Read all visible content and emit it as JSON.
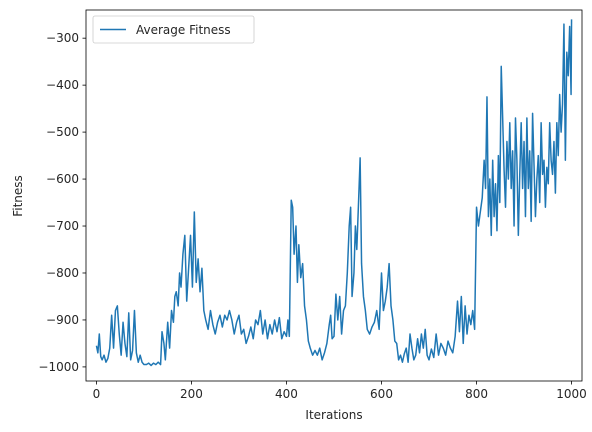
{
  "chart_data": {
    "type": "line",
    "title": "",
    "xlabel": "Iterations",
    "ylabel": "Fitness",
    "xlim": [
      -22,
      1022
    ],
    "ylim": [
      -1030,
      -240
    ],
    "xticks": [
      0,
      200,
      400,
      600,
      800,
      1000
    ],
    "yticks": [
      -1000,
      -900,
      -800,
      -700,
      -600,
      -500,
      -400,
      -300
    ],
    "xtick_labels": [
      "0",
      "200",
      "400",
      "600",
      "800",
      "1000"
    ],
    "ytick_labels": [
      "−1000",
      "−900",
      "−800",
      "−700",
      "−600",
      "−500",
      "−400",
      "−300"
    ],
    "grid": false,
    "legend_position": "top-left",
    "series": [
      {
        "name": "Average Fitness",
        "color": "#1f77b4",
        "keypoints": [
          [
            0,
            -955
          ],
          [
            3,
            -970
          ],
          [
            6,
            -930
          ],
          [
            9,
            -978
          ],
          [
            12,
            -985
          ],
          [
            16,
            -975
          ],
          [
            20,
            -990
          ],
          [
            24,
            -982
          ],
          [
            28,
            -960
          ],
          [
            32,
            -890
          ],
          [
            36,
            -960
          ],
          [
            40,
            -880
          ],
          [
            44,
            -870
          ],
          [
            48,
            -930
          ],
          [
            52,
            -975
          ],
          [
            56,
            -905
          ],
          [
            60,
            -950
          ],
          [
            64,
            -978
          ],
          [
            68,
            -885
          ],
          [
            72,
            -985
          ],
          [
            76,
            -965
          ],
          [
            80,
            -880
          ],
          [
            84,
            -970
          ],
          [
            88,
            -990
          ],
          [
            92,
            -975
          ],
          [
            96,
            -990
          ],
          [
            100,
            -995
          ],
          [
            105,
            -995
          ],
          [
            110,
            -992
          ],
          [
            115,
            -997
          ],
          [
            120,
            -992
          ],
          [
            125,
            -995
          ],
          [
            130,
            -990
          ],
          [
            135,
            -995
          ],
          [
            138,
            -925
          ],
          [
            142,
            -950
          ],
          [
            145,
            -985
          ],
          [
            150,
            -905
          ],
          [
            154,
            -960
          ],
          [
            158,
            -880
          ],
          [
            162,
            -905
          ],
          [
            165,
            -850
          ],
          [
            168,
            -840
          ],
          [
            172,
            -870
          ],
          [
            175,
            -800
          ],
          [
            178,
            -830
          ],
          [
            182,
            -760
          ],
          [
            186,
            -720
          ],
          [
            190,
            -860
          ],
          [
            194,
            -790
          ],
          [
            198,
            -720
          ],
          [
            202,
            -830
          ],
          [
            206,
            -670
          ],
          [
            210,
            -820
          ],
          [
            214,
            -770
          ],
          [
            218,
            -840
          ],
          [
            222,
            -790
          ],
          [
            226,
            -880
          ],
          [
            230,
            -900
          ],
          [
            235,
            -920
          ],
          [
            240,
            -880
          ],
          [
            245,
            -910
          ],
          [
            250,
            -930
          ],
          [
            255,
            -905
          ],
          [
            260,
            -890
          ],
          [
            265,
            -915
          ],
          [
            270,
            -890
          ],
          [
            275,
            -900
          ],
          [
            280,
            -880
          ],
          [
            285,
            -900
          ],
          [
            290,
            -930
          ],
          [
            295,
            -905
          ],
          [
            300,
            -890
          ],
          [
            305,
            -930
          ],
          [
            310,
            -920
          ],
          [
            315,
            -950
          ],
          [
            320,
            -935
          ],
          [
            325,
            -915
          ],
          [
            330,
            -940
          ],
          [
            335,
            -900
          ],
          [
            340,
            -910
          ],
          [
            345,
            -880
          ],
          [
            350,
            -930
          ],
          [
            355,
            -900
          ],
          [
            360,
            -940
          ],
          [
            365,
            -910
          ],
          [
            370,
            -930
          ],
          [
            375,
            -900
          ],
          [
            380,
            -925
          ],
          [
            385,
            -895
          ],
          [
            390,
            -940
          ],
          [
            395,
            -925
          ],
          [
            400,
            -935
          ],
          [
            403,
            -900
          ],
          [
            406,
            -935
          ],
          [
            410,
            -645
          ],
          [
            413,
            -660
          ],
          [
            416,
            -760
          ],
          [
            420,
            -700
          ],
          [
            423,
            -820
          ],
          [
            426,
            -740
          ],
          [
            430,
            -810
          ],
          [
            434,
            -780
          ],
          [
            438,
            -870
          ],
          [
            442,
            -900
          ],
          [
            446,
            -945
          ],
          [
            450,
            -960
          ],
          [
            455,
            -975
          ],
          [
            460,
            -965
          ],
          [
            465,
            -975
          ],
          [
            470,
            -960
          ],
          [
            475,
            -985
          ],
          [
            480,
            -970
          ],
          [
            485,
            -950
          ],
          [
            490,
            -910
          ],
          [
            493,
            -890
          ],
          [
            496,
            -940
          ],
          [
            500,
            -935
          ],
          [
            504,
            -845
          ],
          [
            508,
            -900
          ],
          [
            512,
            -850
          ],
          [
            516,
            -930
          ],
          [
            520,
            -880
          ],
          [
            524,
            -870
          ],
          [
            528,
            -800
          ],
          [
            532,
            -700
          ],
          [
            535,
            -660
          ],
          [
            538,
            -850
          ],
          [
            542,
            -800
          ],
          [
            545,
            -700
          ],
          [
            548,
            -750
          ],
          [
            552,
            -640
          ],
          [
            555,
            -555
          ],
          [
            558,
            -780
          ],
          [
            562,
            -850
          ],
          [
            566,
            -880
          ],
          [
            570,
            -920
          ],
          [
            575,
            -930
          ],
          [
            580,
            -915
          ],
          [
            585,
            -905
          ],
          [
            590,
            -880
          ],
          [
            595,
            -920
          ],
          [
            600,
            -800
          ],
          [
            604,
            -880
          ],
          [
            608,
            -860
          ],
          [
            612,
            -830
          ],
          [
            616,
            -780
          ],
          [
            620,
            -870
          ],
          [
            624,
            -900
          ],
          [
            628,
            -945
          ],
          [
            632,
            -950
          ],
          [
            636,
            -985
          ],
          [
            640,
            -975
          ],
          [
            644,
            -990
          ],
          [
            648,
            -972
          ],
          [
            652,
            -960
          ],
          [
            656,
            -990
          ],
          [
            660,
            -930
          ],
          [
            664,
            -960
          ],
          [
            668,
            -985
          ],
          [
            672,
            -975
          ],
          [
            676,
            -940
          ],
          [
            680,
            -970
          ],
          [
            684,
            -930
          ],
          [
            688,
            -960
          ],
          [
            692,
            -920
          ],
          [
            696,
            -975
          ],
          [
            700,
            -985
          ],
          [
            705,
            -962
          ],
          [
            710,
            -980
          ],
          [
            715,
            -930
          ],
          [
            720,
            -975
          ],
          [
            725,
            -950
          ],
          [
            730,
            -960
          ],
          [
            735,
            -975
          ],
          [
            740,
            -945
          ],
          [
            745,
            -960
          ],
          [
            750,
            -970
          ],
          [
            755,
            -935
          ],
          [
            760,
            -860
          ],
          [
            764,
            -925
          ],
          [
            768,
            -850
          ],
          [
            772,
            -950
          ],
          [
            776,
            -870
          ],
          [
            780,
            -930
          ],
          [
            784,
            -890
          ],
          [
            788,
            -910
          ],
          [
            792,
            -880
          ],
          [
            796,
            -920
          ],
          [
            800,
            -660
          ],
          [
            804,
            -700
          ],
          [
            808,
            -670
          ],
          [
            812,
            -640
          ],
          [
            816,
            -560
          ],
          [
            819,
            -620
          ],
          [
            822,
            -425
          ],
          [
            825,
            -680
          ],
          [
            828,
            -600
          ],
          [
            831,
            -720
          ],
          [
            834,
            -560
          ],
          [
            837,
            -680
          ],
          [
            840,
            -610
          ],
          [
            843,
            -710
          ],
          [
            846,
            -550
          ],
          [
            849,
            -650
          ],
          [
            852,
            -360
          ],
          [
            855,
            -470
          ],
          [
            858,
            -580
          ],
          [
            861,
            -660
          ],
          [
            864,
            -520
          ],
          [
            867,
            -600
          ],
          [
            870,
            -480
          ],
          [
            873,
            -620
          ],
          [
            876,
            -540
          ],
          [
            879,
            -700
          ],
          [
            882,
            -470
          ],
          [
            885,
            -560
          ],
          [
            888,
            -720
          ],
          [
            891,
            -590
          ],
          [
            894,
            -480
          ],
          [
            897,
            -620
          ],
          [
            900,
            -520
          ],
          [
            903,
            -680
          ],
          [
            906,
            -470
          ],
          [
            909,
            -620
          ],
          [
            912,
            -540
          ],
          [
            915,
            -690
          ],
          [
            918,
            -460
          ],
          [
            921,
            -570
          ],
          [
            924,
            -680
          ],
          [
            927,
            -600
          ],
          [
            930,
            -550
          ],
          [
            933,
            -650
          ],
          [
            936,
            -480
          ],
          [
            939,
            -590
          ],
          [
            942,
            -560
          ],
          [
            945,
            -660
          ],
          [
            948,
            -575
          ],
          [
            951,
            -610
          ],
          [
            954,
            -480
          ],
          [
            957,
            -560
          ],
          [
            960,
            -590
          ],
          [
            963,
            -520
          ],
          [
            966,
            -630
          ],
          [
            969,
            -480
          ],
          [
            972,
            -550
          ],
          [
            975,
            -420
          ],
          [
            978,
            -500
          ],
          [
            981,
            -440
          ],
          [
            984,
            -270
          ],
          [
            987,
            -560
          ],
          [
            990,
            -330
          ],
          [
            993,
            -380
          ],
          [
            996,
            -275
          ],
          [
            999,
            -420
          ],
          [
            1000,
            -260
          ]
        ]
      }
    ]
  }
}
